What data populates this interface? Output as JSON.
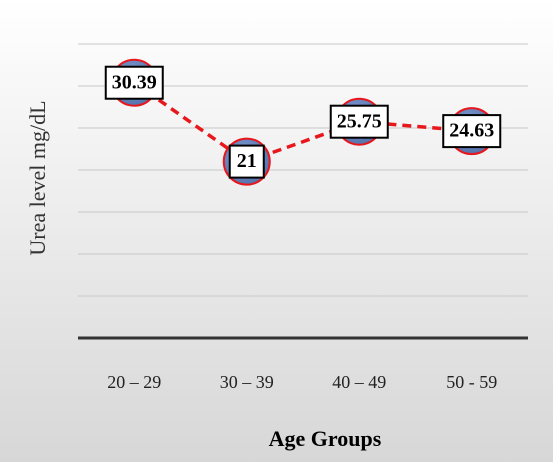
{
  "chart_data": {
    "type": "line",
    "categories": [
      "20 – 29",
      "30 – 39",
      "40 – 49",
      "50 - 59"
    ],
    "series": [
      {
        "values": [
          30.39,
          21,
          25.75,
          24.63
        ]
      }
    ],
    "data_labels": [
      "30.39",
      "21",
      "25.75",
      "24.63"
    ],
    "title": "",
    "xlabel": "Age Groups",
    "ylabel": "Urea level mg/dL",
    "ylim": [
      0,
      35
    ],
    "y_tick_step": 5,
    "show_y_tick_labels": false,
    "grid": true,
    "legend": "none"
  },
  "colors": {
    "line": "#e8171c",
    "marker_fill": "#4f6fa9",
    "marker_edge": "#e8171c",
    "gridline": "#c8c8c8",
    "axis": "#333333",
    "background_top": "#ffffff",
    "background_bottom": "#d7d7d7"
  }
}
